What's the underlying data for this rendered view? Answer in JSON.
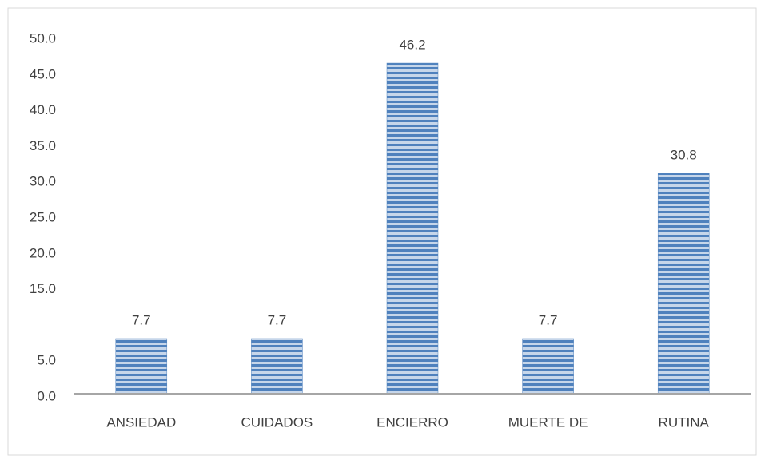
{
  "chart_data": {
    "type": "bar",
    "categories": [
      "ANSIEDAD",
      "CUIDADOS",
      "ENCIERRO",
      "MUERTE DE",
      "RUTINA"
    ],
    "values": [
      7.7,
      7.7,
      46.2,
      7.7,
      30.8
    ],
    "value_labels": [
      "7.7",
      "7.7",
      "46.2",
      "7.7",
      "30.8"
    ],
    "color": "#4f81bd",
    "ylim": [
      0,
      50
    ],
    "yticks": [
      {
        "value": 0,
        "label": "0.0"
      },
      {
        "value": 5,
        "label": "5.0"
      },
      {
        "value": 15,
        "label": "15.0"
      },
      {
        "value": 20,
        "label": "20.0"
      },
      {
        "value": 25,
        "label": "25.0"
      },
      {
        "value": 30,
        "label": "30.0"
      },
      {
        "value": 35,
        "label": "35.0"
      },
      {
        "value": 40,
        "label": "40.0"
      },
      {
        "value": 45,
        "label": "45.0"
      },
      {
        "value": 50,
        "label": "50.0"
      }
    ],
    "grid": false
  }
}
